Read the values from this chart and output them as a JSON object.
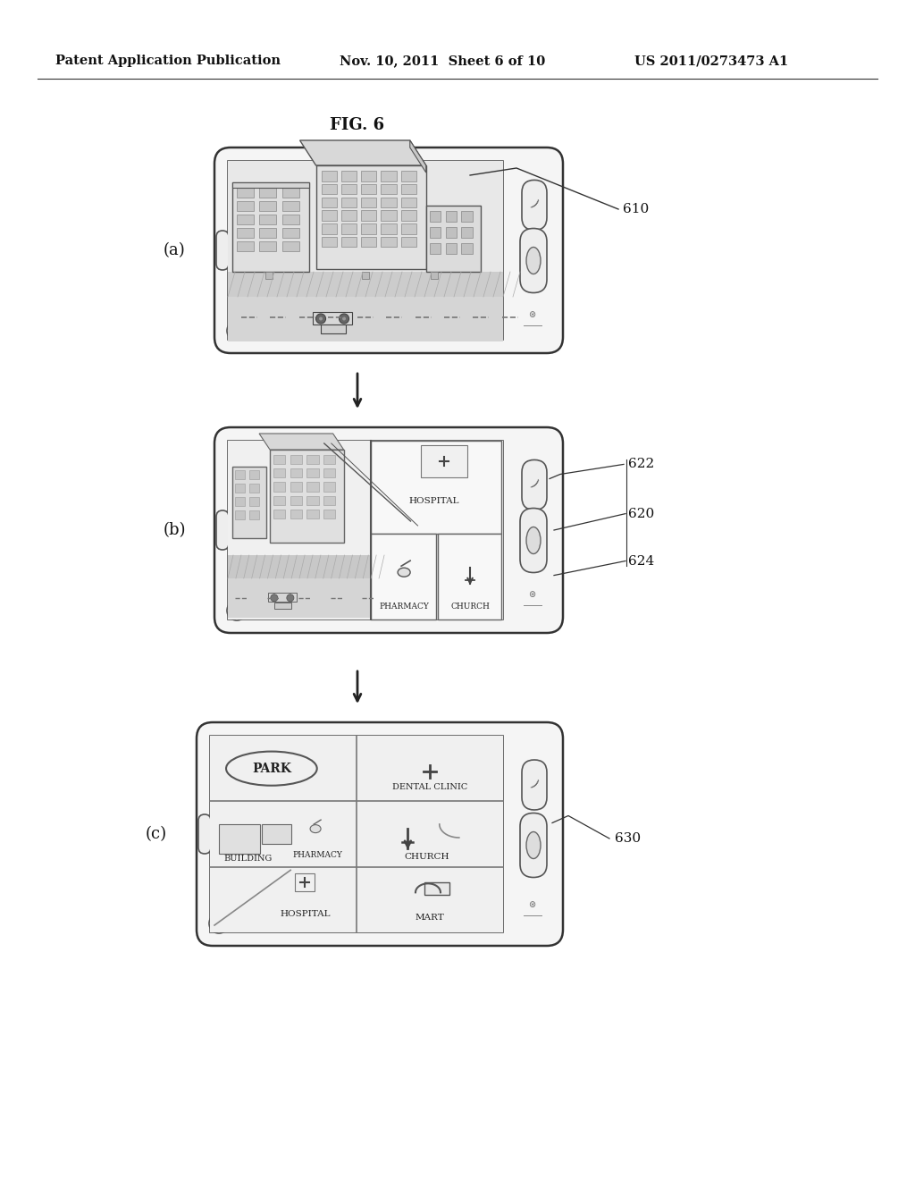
{
  "header_left": "Patent Application Publication",
  "header_mid": "Nov. 10, 2011  Sheet 6 of 10",
  "header_right": "US 2011/0273473 A1",
  "fig_title": "FIG. 6",
  "bg_color": "#ffffff",
  "label_a": "(a)",
  "label_b": "(b)",
  "label_c": "(c)",
  "ref_610": "610",
  "ref_620": "620",
  "ref_622": "622",
  "ref_624": "624",
  "ref_630": "630",
  "hospital_label": "HOSPITAL",
  "pharmacy_label": "PHARMACY",
  "church_label": "CHURCH",
  "building_label": "BUILDING",
  "mart_label": "MART",
  "park_label": "PARK",
  "dental_label": "DENTAL CLINIC"
}
